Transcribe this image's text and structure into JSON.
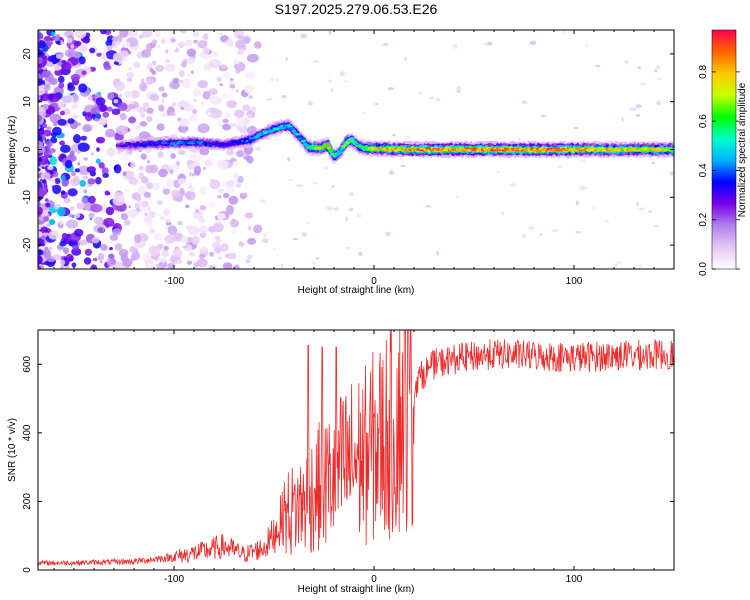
{
  "chart_data": [
    {
      "type": "heatmap",
      "title": "S197.2025.279.06.53.E26",
      "xlabel": "Height of straight line (km)",
      "ylabel": "Frequency (Hz)",
      "xlim": [
        -168,
        150
      ],
      "ylim": [
        -25,
        25
      ],
      "xticks": [
        -100,
        0,
        100
      ],
      "xtick_labels": [
        "-100",
        "0",
        "100"
      ],
      "yticks": [
        -20,
        -10,
        0,
        10,
        20
      ],
      "ytick_labels": [
        "-20",
        "-10",
        "0",
        "10",
        "20"
      ],
      "colorbar": {
        "label": "Normalized spectral amplitude",
        "range": [
          0,
          0.97
        ],
        "ticks": [
          0,
          0.2,
          0.4,
          0.6,
          0.8
        ],
        "tick_labels": [
          "0.0",
          "0.2",
          "0.4",
          "0.6",
          "0.8"
        ],
        "colors": [
          "#ffffff",
          "#e6c7f5",
          "#b080ee",
          "#7a00e6",
          "#0000ff",
          "#00b4ff",
          "#00ffc8",
          "#00ff00",
          "#c8ff00",
          "#ffc800",
          "#ff6400",
          "#ff0050"
        ]
      },
      "ridge": {
        "x": [
          -128,
          -110,
          -90,
          -75,
          -62,
          -55,
          -48,
          -43,
          -40,
          -37,
          -33,
          -28,
          -23,
          -20,
          -17,
          -14,
          -11,
          -8,
          -5,
          0,
          20,
          50,
          80,
          110,
          150
        ],
        "freq": [
          0.8,
          1.2,
          1.5,
          1.0,
          2.0,
          3.5,
          4.5,
          5.0,
          4.0,
          2.5,
          0.5,
          0.3,
          0.8,
          -1.5,
          -0.5,
          1.5,
          2.0,
          0.8,
          0.3,
          0.2,
          0.0,
          0.0,
          0.0,
          0.0,
          0.0
        ],
        "peak_amplitude": [
          0.3,
          0.4,
          0.45,
          0.35,
          0.45,
          0.5,
          0.55,
          0.5,
          0.5,
          0.5,
          0.6,
          0.75,
          0.85,
          0.6,
          0.55,
          0.7,
          0.65,
          0.6,
          0.7,
          0.8,
          0.92,
          0.95,
          0.95,
          0.85,
          0.8
        ]
      }
    },
    {
      "type": "line",
      "xlabel": "Height of straight line (km)",
      "ylabel": "SNR (10 * v/v)",
      "xlim": [
        -168,
        150
      ],
      "ylim": [
        0,
        700
      ],
      "xticks": [
        -100,
        0,
        100
      ],
      "xtick_labels": [
        "-100",
        "0",
        "100"
      ],
      "yticks": [
        0,
        200,
        400,
        600
      ],
      "ytick_labels": [
        "0",
        "200",
        "400",
        "600"
      ],
      "color": "#ee2b2b",
      "series": [
        {
          "name": "SNR",
          "x": [
            -168,
            -140,
            -120,
            -100,
            -85,
            -75,
            -65,
            -55,
            -50,
            -45,
            -40,
            -35,
            -30,
            -25,
            -20,
            -15,
            -10,
            -5,
            0,
            5,
            10,
            15,
            20,
            25,
            30,
            40,
            60,
            80,
            100,
            120,
            150
          ],
          "y": [
            20,
            22,
            25,
            38,
            55,
            70,
            45,
            65,
            105,
            160,
            175,
            195,
            230,
            250,
            270,
            300,
            320,
            330,
            360,
            385,
            430,
            480,
            540,
            575,
            600,
            615,
            630,
            625,
            620,
            625,
            630
          ],
          "spikes": [
            {
              "x": -33,
              "y": 655
            },
            {
              "x": -26,
              "y": 650
            },
            {
              "x": -19,
              "y": 650
            }
          ]
        }
      ]
    }
  ]
}
